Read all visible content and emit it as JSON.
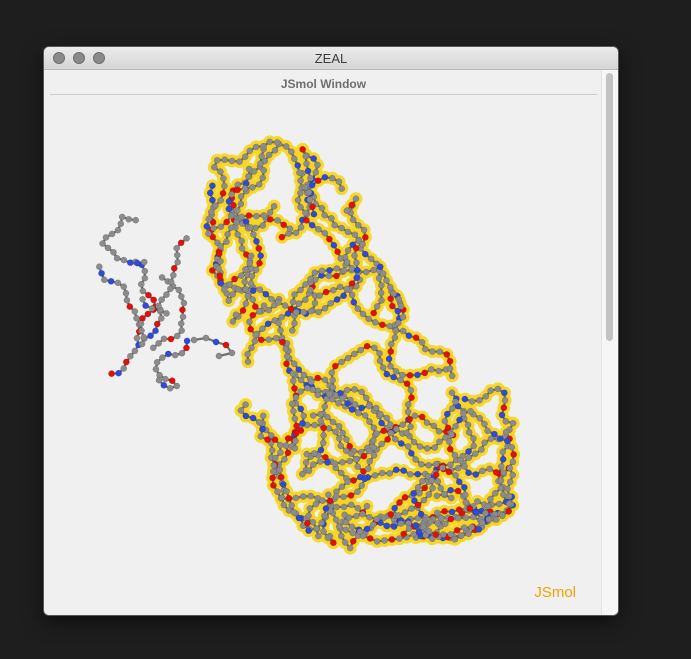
{
  "window": {
    "title": "ZEAL",
    "controls": [
      "close",
      "minimize",
      "maximize"
    ]
  },
  "panel": {
    "title": "JSmol Window",
    "watermark": "JSmol"
  },
  "colors": {
    "background": "#1e1e1e",
    "panel_bg": "#f0f0f0",
    "highlight": "#f7d51c",
    "carbon": "#8c8c8c",
    "oxygen": "#e0100a",
    "nitrogen": "#2d4ad8",
    "watermark": "#f0a300"
  },
  "molecules": [
    {
      "name": "ligand",
      "highlighted": false
    },
    {
      "name": "protein",
      "highlighted": true
    }
  ]
}
